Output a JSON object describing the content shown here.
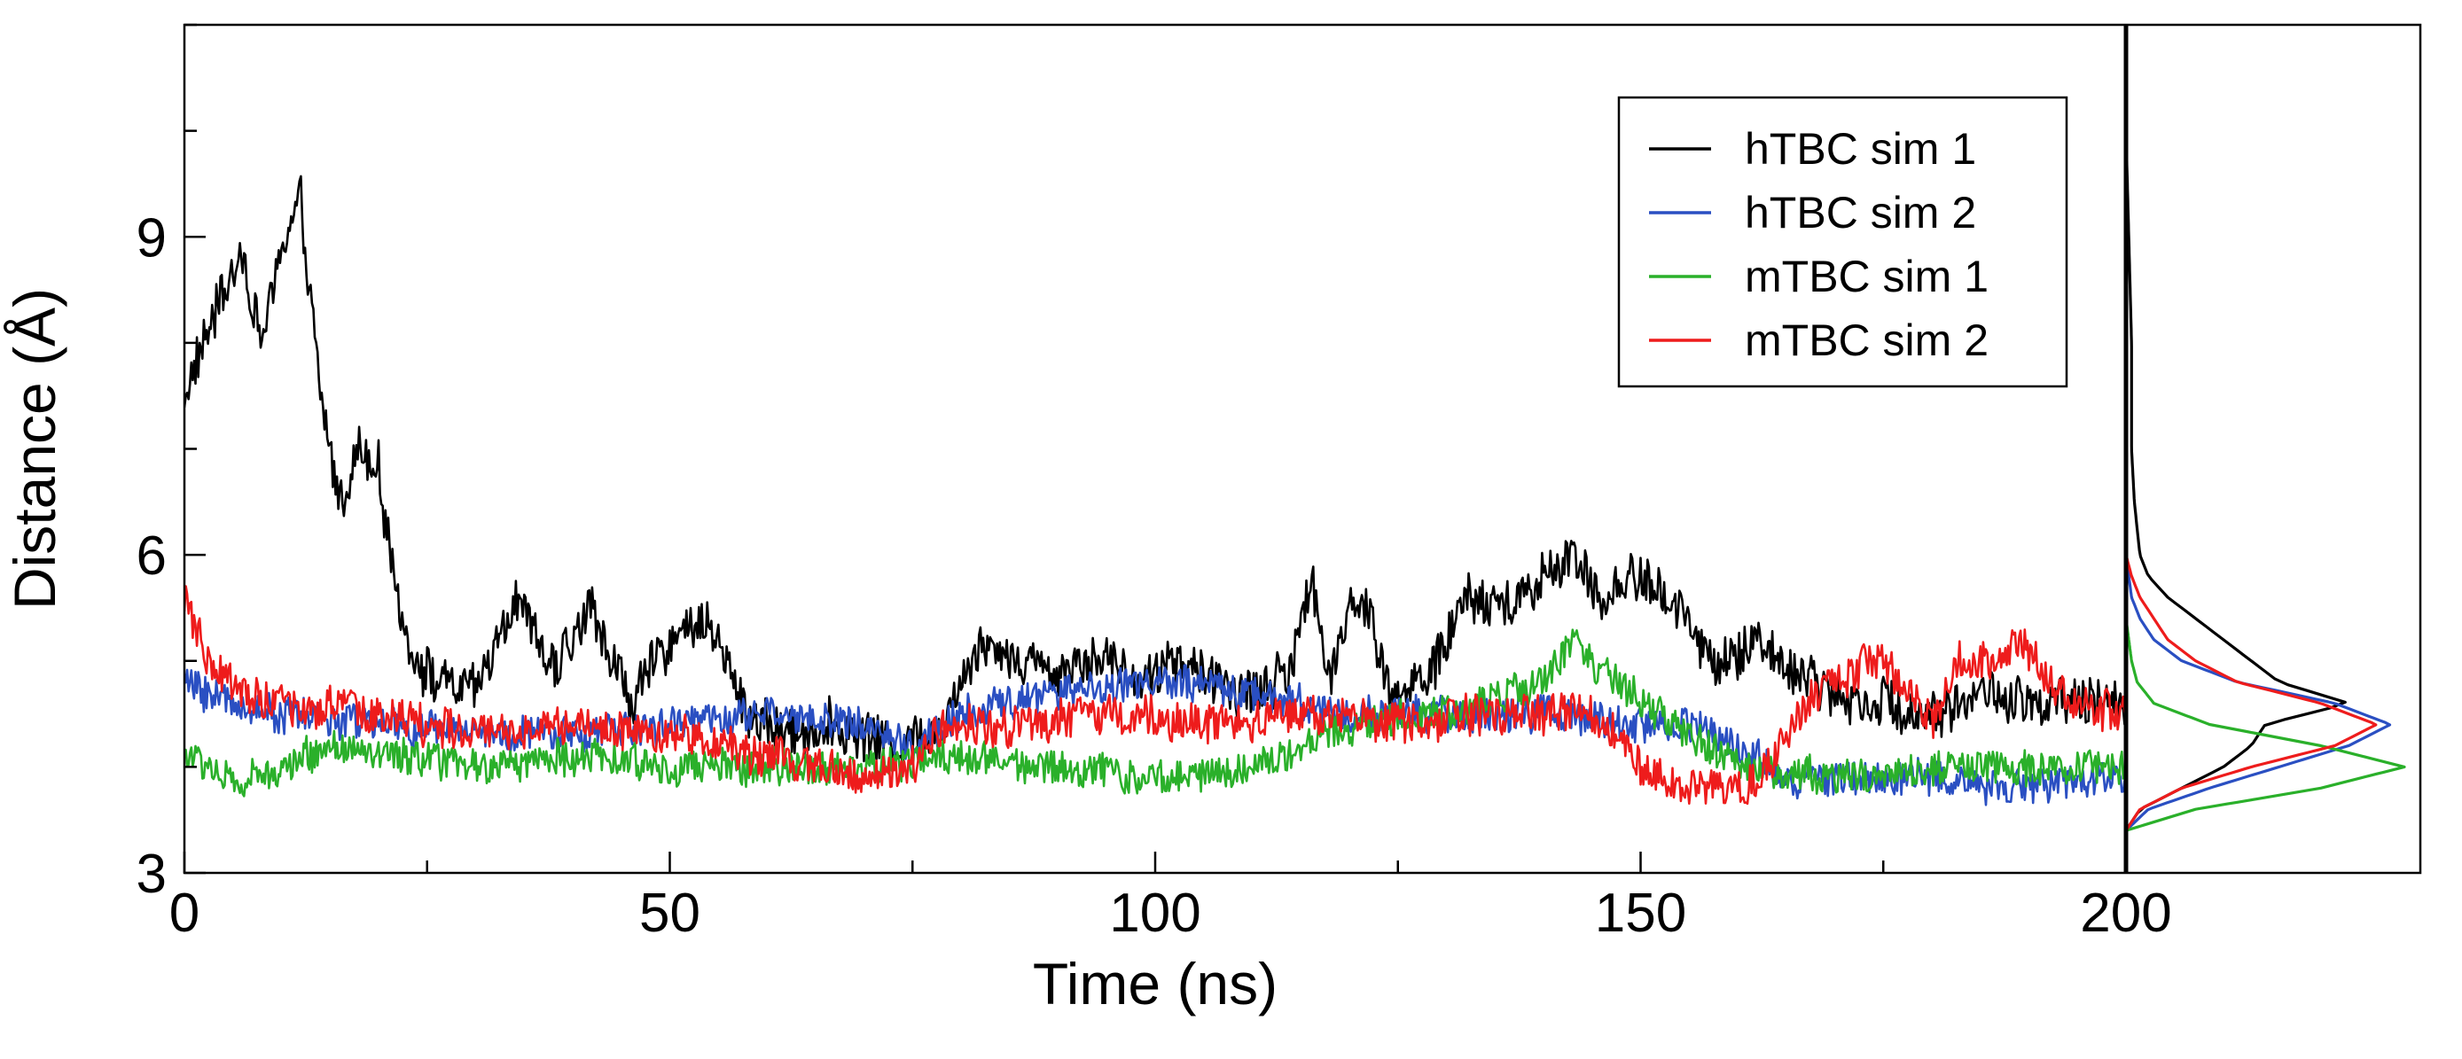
{
  "chart_data": {
    "type": "line",
    "title": "",
    "xlabel": "Time (ns)",
    "ylabel": "Distance (Å)",
    "xlim": [
      0,
      200
    ],
    "ylim": [
      3,
      11
    ],
    "xticks": [
      "0",
      "50",
      "100",
      "150",
      "200"
    ],
    "yticks": [
      "3",
      "6",
      "9"
    ],
    "legend_position": "top-right",
    "series": [
      {
        "name": "hTBC sim 1",
        "color": "#000000",
        "x": [
          0,
          2,
          4,
          6,
          8,
          10,
          12,
          14,
          16,
          18,
          20,
          22,
          24,
          26,
          30,
          34,
          38,
          42,
          46,
          50,
          54,
          58,
          62,
          66,
          70,
          74,
          78,
          82,
          86,
          90,
          94,
          98,
          102,
          106,
          110,
          114,
          116,
          118,
          120,
          122,
          124,
          128,
          132,
          136,
          140,
          143,
          146,
          150,
          154,
          158,
          162,
          166,
          170,
          175,
          180,
          185,
          190,
          195,
          200
        ],
        "y": [
          7.5,
          8.0,
          8.5,
          8.8,
          8.0,
          8.9,
          9.3,
          7.5,
          6.5,
          7.0,
          6.8,
          5.5,
          5.0,
          4.8,
          4.7,
          5.6,
          4.9,
          5.5,
          4.6,
          5.2,
          5.4,
          4.5,
          4.3,
          4.4,
          4.3,
          4.2,
          4.4,
          5.2,
          5.0,
          4.9,
          5.1,
          4.8,
          5.0,
          4.8,
          4.7,
          4.9,
          5.8,
          4.8,
          5.6,
          5.5,
          4.7,
          4.8,
          5.6,
          5.5,
          5.8,
          6.0,
          5.6,
          5.8,
          5.5,
          4.9,
          5.2,
          4.9,
          4.7,
          4.6,
          4.5,
          4.7,
          4.6,
          4.6,
          4.6
        ]
      },
      {
        "name": "hTBC sim 2",
        "color": "#2a4fc2",
        "x": [
          0,
          5,
          10,
          20,
          30,
          40,
          50,
          60,
          70,
          75,
          80,
          90,
          100,
          110,
          120,
          130,
          140,
          150,
          155,
          160,
          165,
          170,
          180,
          190,
          200
        ],
        "y": [
          4.8,
          4.6,
          4.5,
          4.4,
          4.3,
          4.3,
          4.4,
          4.5,
          4.4,
          4.2,
          4.5,
          4.7,
          4.8,
          4.7,
          4.5,
          4.5,
          4.5,
          4.4,
          4.4,
          4.2,
          3.9,
          3.9,
          3.9,
          3.8,
          3.9
        ]
      },
      {
        "name": "mTBC sim 1",
        "color": "#2ab02a",
        "x": [
          0,
          3,
          5,
          10,
          15,
          20,
          30,
          40,
          50,
          60,
          70,
          80,
          90,
          100,
          110,
          120,
          130,
          140,
          143,
          146,
          150,
          160,
          170,
          180,
          190,
          200
        ],
        "y": [
          4.1,
          4.0,
          3.8,
          4.0,
          4.2,
          4.1,
          4.0,
          4.1,
          4.0,
          4.0,
          4.0,
          4.1,
          4.0,
          3.9,
          4.0,
          4.4,
          4.5,
          4.8,
          5.2,
          4.9,
          4.6,
          4.0,
          3.9,
          4.0,
          4.0,
          4.0
        ]
      },
      {
        "name": "mTBC sim 2",
        "color": "#ee1c1c",
        "x": [
          0,
          1,
          3,
          6,
          10,
          13,
          15,
          20,
          30,
          40,
          50,
          60,
          70,
          75,
          78,
          85,
          95,
          105,
          115,
          125,
          135,
          145,
          150,
          155,
          160,
          163,
          167,
          170,
          175,
          180,
          183,
          186,
          189,
          192,
          195,
          200
        ],
        "y": [
          5.6,
          5.3,
          4.9,
          4.7,
          4.6,
          4.5,
          4.6,
          4.5,
          4.3,
          4.4,
          4.3,
          4.1,
          3.9,
          4.0,
          4.4,
          4.4,
          4.5,
          4.4,
          4.5,
          4.4,
          4.5,
          4.5,
          4.0,
          3.8,
          3.8,
          4.0,
          4.6,
          4.8,
          5.0,
          4.4,
          5.0,
          5.0,
          5.2,
          4.8,
          4.6,
          4.5
        ]
      }
    ],
    "distribution_panel": {
      "description": "Distance probability distributions (side panel)",
      "series": [
        {
          "name": "hTBC sim 1",
          "y": [
            3.4,
            3.6,
            3.8,
            4.0,
            4.2,
            4.4,
            4.6,
            4.8,
            5.0,
            5.2,
            5.4,
            5.6,
            5.8,
            6.0,
            6.5,
            7.0,
            8.0,
            9.0,
            10.0
          ],
          "density": [
            0.0,
            0.05,
            0.2,
            0.35,
            0.45,
            0.5,
            0.8,
            0.55,
            0.45,
            0.35,
            0.25,
            0.15,
            0.08,
            0.05,
            0.03,
            0.02,
            0.02,
            0.01,
            0.0
          ]
        },
        {
          "name": "hTBC sim 2",
          "y": [
            3.4,
            3.6,
            3.8,
            4.0,
            4.2,
            4.4,
            4.6,
            4.8,
            5.0,
            5.2,
            5.4,
            5.6,
            6.0
          ],
          "density": [
            0.0,
            0.08,
            0.3,
            0.55,
            0.8,
            0.95,
            0.75,
            0.4,
            0.2,
            0.1,
            0.05,
            0.02,
            0.0
          ]
        },
        {
          "name": "mTBC sim 1",
          "y": [
            3.4,
            3.6,
            3.8,
            4.0,
            4.2,
            4.4,
            4.6,
            4.8,
            5.0,
            5.4
          ],
          "density": [
            0.0,
            0.25,
            0.7,
            1.0,
            0.7,
            0.3,
            0.1,
            0.04,
            0.02,
            0.0
          ]
        },
        {
          "name": "mTBC sim 2",
          "y": [
            3.4,
            3.6,
            3.8,
            4.0,
            4.2,
            4.4,
            4.6,
            4.8,
            5.0,
            5.2,
            5.4,
            5.6,
            5.8,
            6.0
          ],
          "density": [
            0.0,
            0.05,
            0.2,
            0.45,
            0.75,
            0.9,
            0.7,
            0.4,
            0.25,
            0.15,
            0.1,
            0.05,
            0.02,
            0.0
          ]
        }
      ]
    }
  }
}
